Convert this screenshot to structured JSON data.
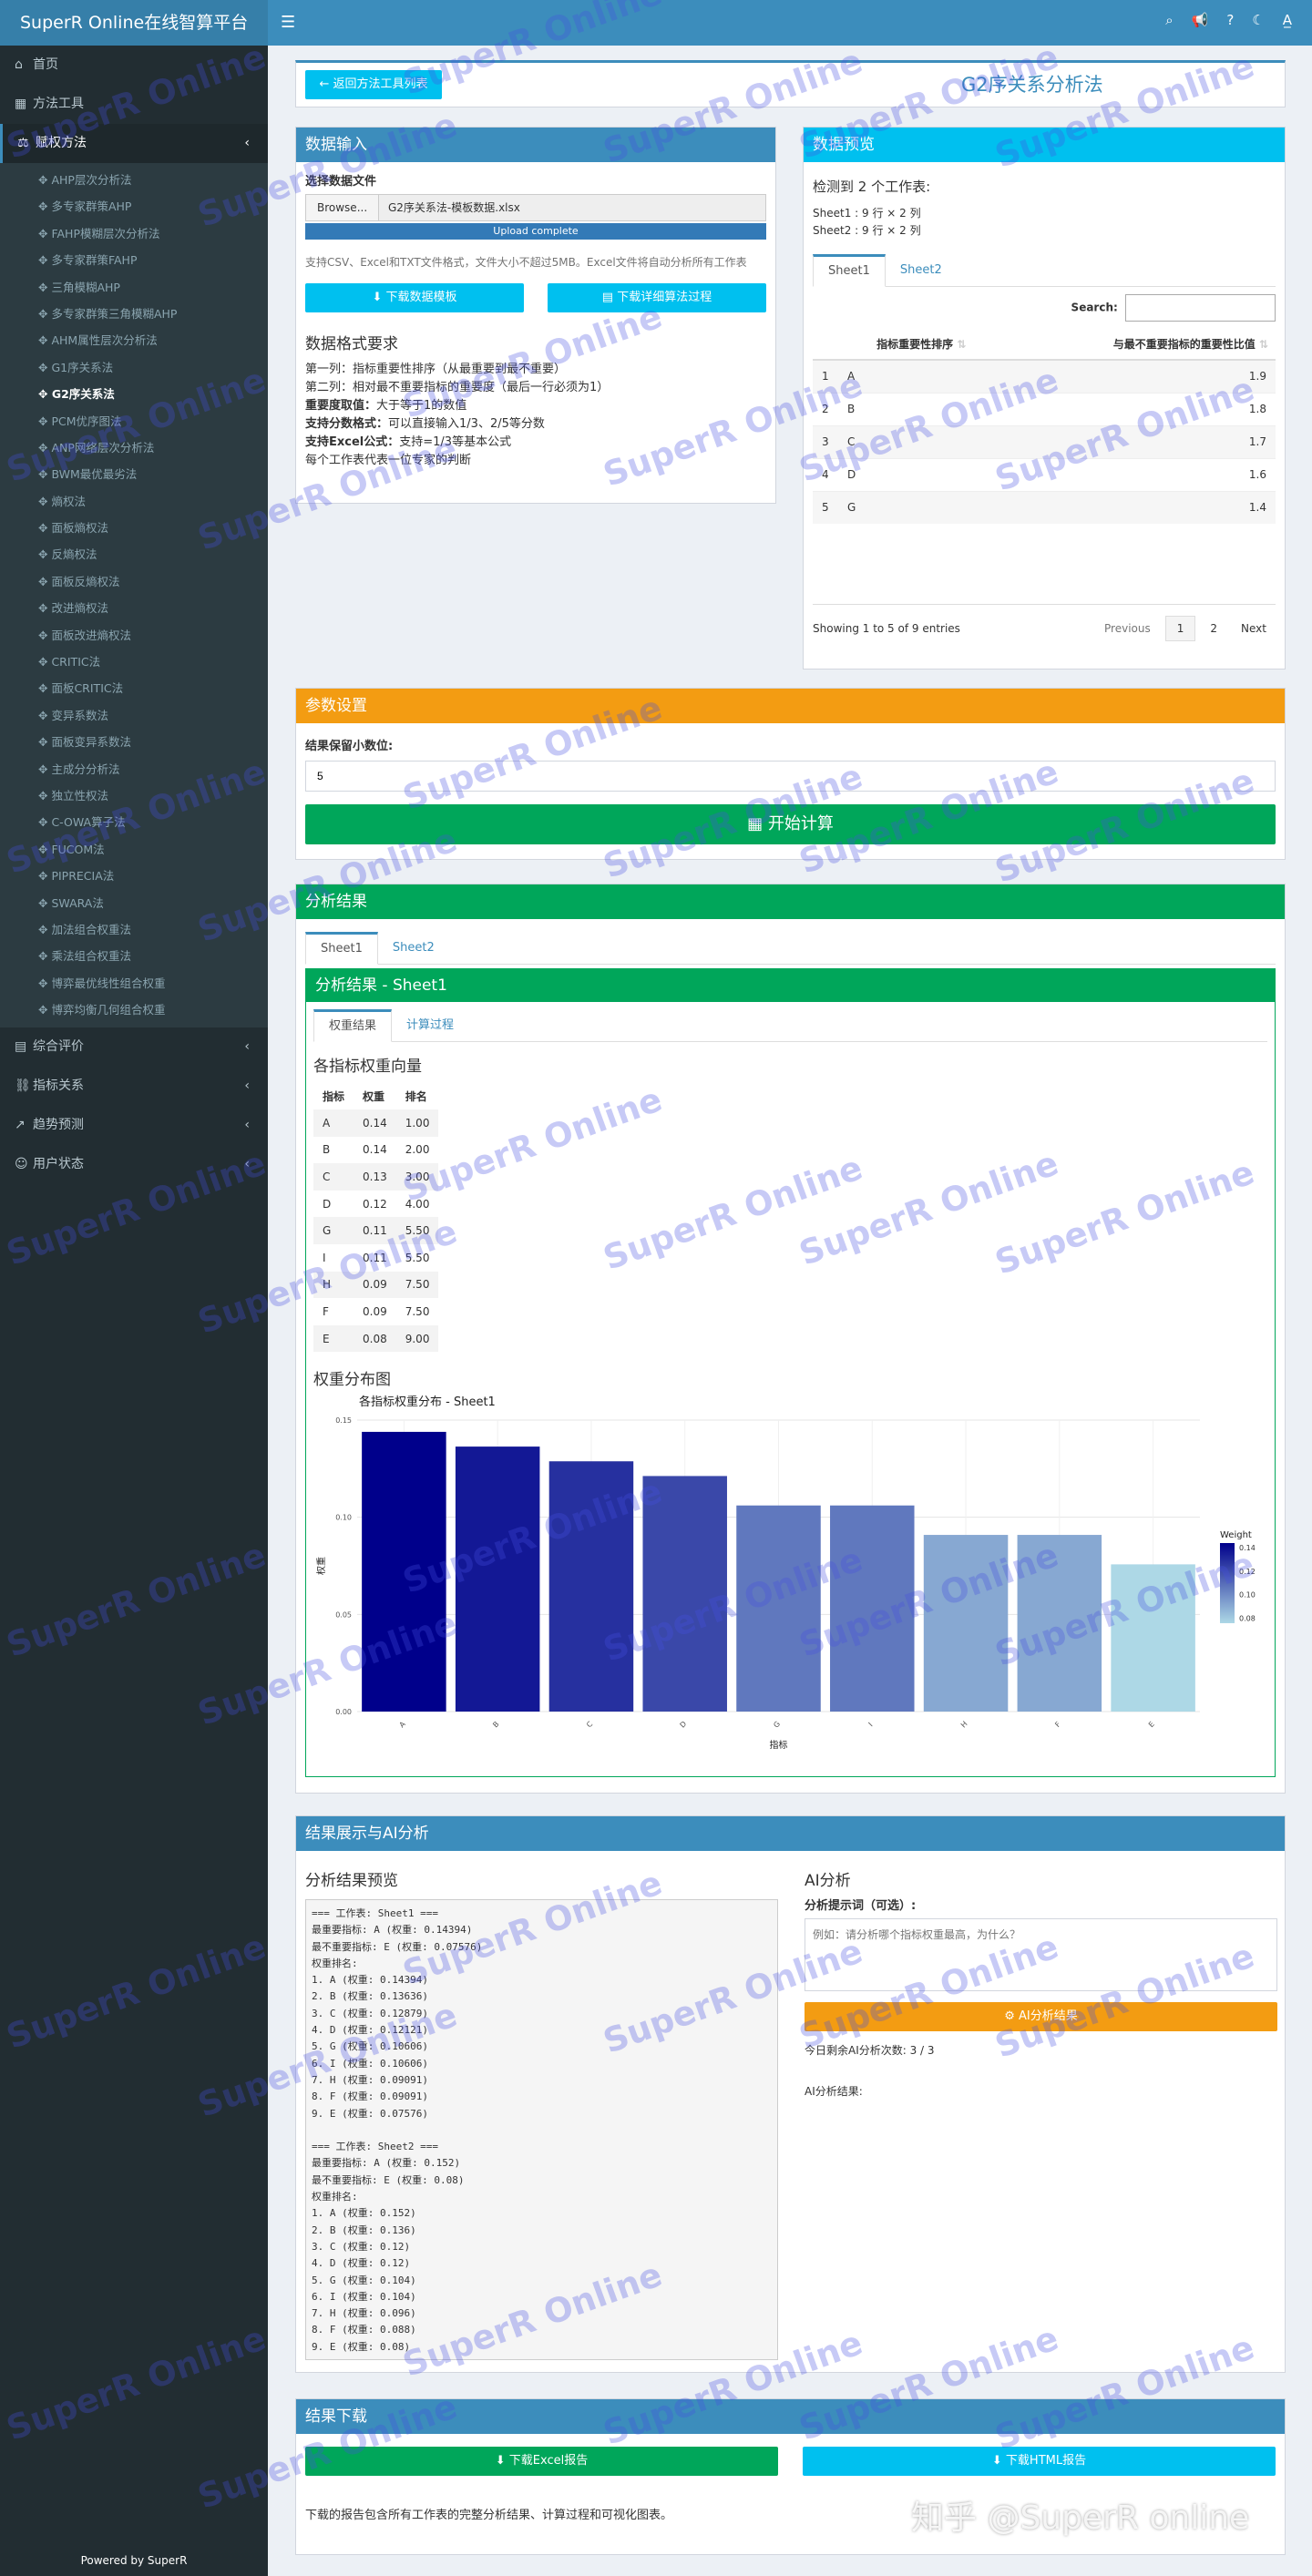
{
  "app": {
    "brand": "SuperR Online在线智算平台",
    "footer": "Powered by SuperR"
  },
  "sidebar": {
    "top": [
      {
        "label": "首页",
        "icon": "home-icon"
      },
      {
        "label": "方法工具",
        "icon": "grid-icon"
      }
    ],
    "group": {
      "label": "赋权方法",
      "icon": "scale-icon"
    },
    "sub_items": [
      "AHP层次分析法",
      "多专家群策AHP",
      "FAHP模糊层次分析法",
      "多专家群策FAHP",
      "三角模糊AHP",
      "多专家群策三角模糊AHP",
      "AHM属性层次分析法",
      "G1序关系法",
      "G2序关系法",
      "PCM优序图法",
      "ANP网络层次分析法",
      "BWM最优最劣法",
      "熵权法",
      "面板熵权法",
      "反熵权法",
      "面板反熵权法",
      "改进熵权法",
      "面板改进熵权法",
      "CRITIC法",
      "面板CRITIC法",
      "变异系数法",
      "面板变异系数法",
      "主成分分析法",
      "独立性权法",
      "C-OWA算子法",
      "FUCOM法",
      "PIPRECIA法",
      "SWARA法",
      "加法组合权重法",
      "乘法组合权重法",
      "博弈最优线性组合权重",
      "博弈均衡几何组合权重"
    ],
    "active_sub": "G2序关系法",
    "bottom": [
      {
        "label": "综合评价",
        "icon": "chart-icon"
      },
      {
        "label": "指标关系",
        "icon": "link-icon"
      },
      {
        "label": "趋势预测",
        "icon": "trend-icon"
      },
      {
        "label": "用户状态",
        "icon": "user-icon"
      }
    ]
  },
  "header": {
    "back_button": "返回方法工具列表",
    "title": "G2序关系分析法"
  },
  "data_input": {
    "title": "数据输入",
    "file_label": "选择数据文件",
    "browse": "Browse...",
    "filename": "G2序关系法-模板数据.xlsx",
    "upload_status": "Upload complete",
    "help": "支持CSV、Excel和TXT文件格式，文件大小不超过5MB。Excel文件将自动分析所有工作表",
    "btn_template": "下载数据模板",
    "btn_process": "下载详细算法过程",
    "format_title": "数据格式要求",
    "format_lines": [
      {
        "b": "",
        "t": "第一列：指标重要性排序（从最重要到最不重要）"
      },
      {
        "b": "",
        "t": "第二列：相对最不重要指标的重要度（最后一行必须为1）"
      },
      {
        "b": "重要度取值：",
        "t": "大于等于1的数值"
      },
      {
        "b": "支持分数格式：",
        "t": "可以直接输入1/3、2/5等分数"
      },
      {
        "b": "支持Excel公式：",
        "t": "支持=1/3等基本公式"
      },
      {
        "b": "",
        "t": "每个工作表代表一位专家的判断"
      }
    ]
  },
  "preview": {
    "title": "数据预览",
    "detected": "检测到 2 个工作表:",
    "sheets_info": [
      "Sheet1 : 9 行 × 2 列",
      "Sheet2 : 9 行 × 2 列"
    ],
    "tabs": [
      "Sheet1",
      "Sheet2"
    ],
    "search_label": "Search:",
    "columns": [
      "",
      "指标重要性排序",
      "与最不重要指标的重要性比值"
    ],
    "rows": [
      [
        "1",
        "A",
        "1.9"
      ],
      [
        "2",
        "B",
        "1.8"
      ],
      [
        "3",
        "C",
        "1.7"
      ],
      [
        "4",
        "D",
        "1.6"
      ],
      [
        "5",
        "G",
        "1.4"
      ]
    ],
    "info": "Showing 1 to 5 of 9 entries",
    "pager": [
      "Previous",
      "1",
      "2",
      "Next"
    ]
  },
  "params": {
    "title": "参数设置",
    "decimals_label": "结果保留小数位:",
    "decimals_value": "5",
    "start_btn": "开始计算"
  },
  "results": {
    "title": "分析结果",
    "sheet_tabs": [
      "Sheet1",
      "Sheet2"
    ],
    "inner_title": "分析结果 - Sheet1",
    "inner_tabs": [
      "权重结果",
      "计算过程"
    ],
    "vector_title": "各指标权重向量",
    "table_headers": [
      "指标",
      "权重",
      "排名"
    ],
    "table_rows": [
      [
        "A",
        "0.14",
        "1.00"
      ],
      [
        "B",
        "0.14",
        "2.00"
      ],
      [
        "C",
        "0.13",
        "3.00"
      ],
      [
        "D",
        "0.12",
        "4.00"
      ],
      [
        "G",
        "0.11",
        "5.50"
      ],
      [
        "I",
        "0.11",
        "5.50"
      ],
      [
        "H",
        "0.09",
        "7.50"
      ],
      [
        "F",
        "0.09",
        "7.50"
      ],
      [
        "E",
        "0.08",
        "9.00"
      ]
    ],
    "dist_title": "权重分布图"
  },
  "chart_data": {
    "type": "bar",
    "title": "各指标权重分布 - Sheet1",
    "xlabel": "指标",
    "ylabel": "权重",
    "categories": [
      "A",
      "B",
      "C",
      "D",
      "G",
      "I",
      "H",
      "F",
      "E"
    ],
    "values": [
      0.14394,
      0.13636,
      0.12879,
      0.12121,
      0.10606,
      0.10606,
      0.09091,
      0.09091,
      0.07576
    ],
    "ylim": [
      0,
      0.15
    ],
    "yticks": [
      "0.00",
      "0.05",
      "0.10",
      "0.15"
    ],
    "legend": {
      "title": "Weight",
      "ticks": [
        "0.14",
        "0.12",
        "0.10",
        "0.08"
      ],
      "placement": "right"
    },
    "color_low": "#add8e6",
    "color_high": "#00008b",
    "grid": true
  },
  "display": {
    "title": "结果展示与AI分析",
    "preview_title": "分析结果预览",
    "text": "=== 工作表: Sheet1 ===\n最重要指标: A (权重: 0.14394)\n最不重要指标: E (权重: 0.07576)\n权重排名:\n1. A (权重: 0.14394)\n2. B (权重: 0.13636)\n3. C (权重: 0.12879)\n4. D (权重: 0.12121)\n5. G (权重: 0.10606)\n6. I (权重: 0.10606)\n7. H (权重: 0.09091)\n8. F (权重: 0.09091)\n9. E (权重: 0.07576)\n\n=== 工作表: Sheet2 ===\n最重要指标: A (权重: 0.152)\n最不重要指标: E (权重: 0.08)\n权重排名:\n1. A (权重: 0.152)\n2. B (权重: 0.136)\n3. C (权重: 0.12)\n4. D (权重: 0.12)\n5. G (权重: 0.104)\n6. I (权重: 0.104)\n7. H (权重: 0.096)\n8. F (权重: 0.088)\n9. E (权重: 0.08)",
    "ai_title": "AI分析",
    "ai_prompt_label": "分析提示词（可选）:",
    "ai_placeholder": "例如：请分析哪个指标权重最高，为什么？",
    "ai_btn": "AI分析结果",
    "ai_remaining": "今日剩余AI分析次数: 3 / 3",
    "ai_result_label": "AI分析结果:"
  },
  "download": {
    "title": "结果下载",
    "btn_excel": "下载Excel报告",
    "btn_html": "下载HTML报告",
    "note": "下载的报告包含所有工作表的完整分析结果、计算过程和可视化图表。"
  },
  "watermarks": {
    "text": "SuperR Online",
    "corner": "知乎 @SuperR online"
  }
}
